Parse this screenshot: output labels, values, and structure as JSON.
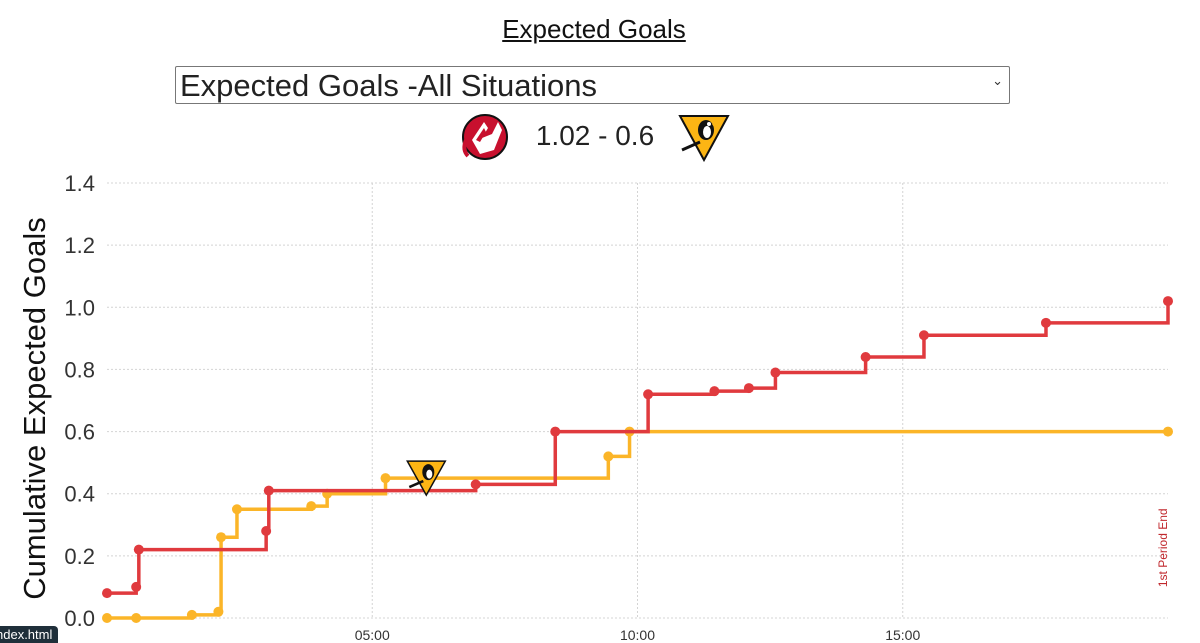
{
  "page": {
    "title": "Expected Goals",
    "tab_label": "ndex.html"
  },
  "selector": {
    "selected": "Expected Goals -All Situations"
  },
  "score": {
    "text": "1.02 - 0.6",
    "home_team_icon": "new-jersey-devils-logo",
    "away_team_icon": "pittsburgh-penguins-logo"
  },
  "colors": {
    "devils": "#e03a3e",
    "penguins": "#fbb528",
    "devils_logo_red": "#c8102e",
    "penguins_logo_gold": "#fcb514"
  },
  "chart_data": {
    "type": "line",
    "line_shape": "step",
    "ylabel": "Cumulative Expected Goals",
    "xlabel": "",
    "x_unit": "minutes",
    "xlim": [
      0,
      20
    ],
    "ylim": [
      0,
      1.4
    ],
    "yticks": [
      0.0,
      0.2,
      0.4,
      0.6,
      0.8,
      1.0,
      1.2,
      1.4
    ],
    "ytick_labels": [
      "0.0",
      "0.2",
      "0.4",
      "0.6",
      "0.8",
      "1.0",
      "1.2",
      "1.4"
    ],
    "xticks": [
      5,
      10,
      15
    ],
    "xtick_labels": [
      "05:00",
      "10:00",
      "15:00"
    ],
    "grid": true,
    "annotations": [
      {
        "text": "1st Period End",
        "x": 20,
        "y": 0.08,
        "orientation": "vertical"
      }
    ],
    "goal_markers": [
      {
        "team": "penguins",
        "x": 6.0,
        "y": 0.46
      }
    ],
    "series": [
      {
        "key": "devils",
        "points": [
          {
            "x": 0.0,
            "y": 0.08
          },
          {
            "x": 0.55,
            "y": 0.1
          },
          {
            "x": 0.6,
            "y": 0.22
          },
          {
            "x": 3.0,
            "y": 0.28
          },
          {
            "x": 3.05,
            "y": 0.41
          },
          {
            "x": 6.95,
            "y": 0.43
          },
          {
            "x": 8.45,
            "y": 0.6
          },
          {
            "x": 10.2,
            "y": 0.72
          },
          {
            "x": 11.45,
            "y": 0.73
          },
          {
            "x": 12.1,
            "y": 0.74
          },
          {
            "x": 12.6,
            "y": 0.79
          },
          {
            "x": 14.3,
            "y": 0.84
          },
          {
            "x": 15.4,
            "y": 0.91
          },
          {
            "x": 17.7,
            "y": 0.95
          },
          {
            "x": 20.0,
            "y": 1.02
          }
        ]
      },
      {
        "key": "penguins",
        "points": [
          {
            "x": 0.0,
            "y": 0.0
          },
          {
            "x": 0.55,
            "y": 0.0
          },
          {
            "x": 1.6,
            "y": 0.01
          },
          {
            "x": 2.1,
            "y": 0.02
          },
          {
            "x": 2.15,
            "y": 0.26
          },
          {
            "x": 2.45,
            "y": 0.35
          },
          {
            "x": 3.85,
            "y": 0.36
          },
          {
            "x": 4.15,
            "y": 0.4
          },
          {
            "x": 5.25,
            "y": 0.45
          },
          {
            "x": 9.45,
            "y": 0.52
          },
          {
            "x": 9.85,
            "y": 0.6
          },
          {
            "x": 20.0,
            "y": 0.6
          }
        ]
      }
    ]
  }
}
